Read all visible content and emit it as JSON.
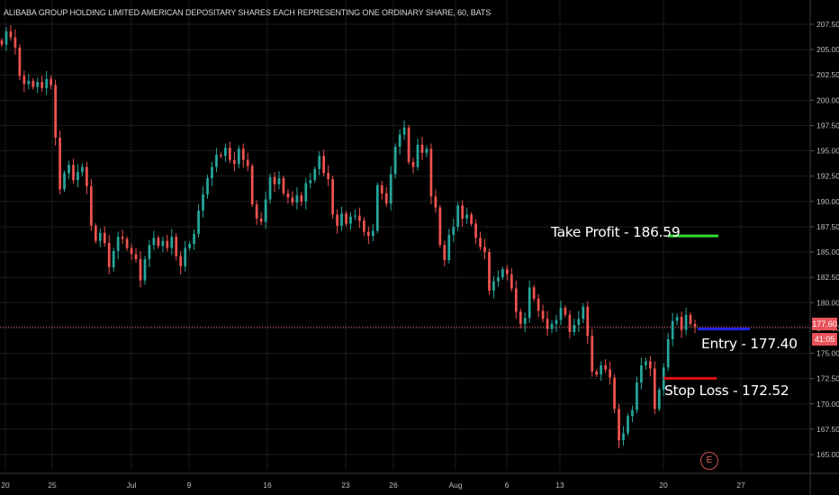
{
  "chart_data": {
    "type": "candlestick",
    "title": "ALIBABA GROUP HOLDING LIMITED AMERICAN DEPOSITARY SHARES EACH REPRESENTING ONE ORDINARY SHARE, 60, BATS",
    "ylim": [
      163.5,
      208.5
    ],
    "y_ticks": [
      "207.50",
      "205.00",
      "202.50",
      "200.00",
      "197.50",
      "195.00",
      "192.50",
      "190.00",
      "187.50",
      "185.00",
      "182.50",
      "180.00",
      "177.50",
      "175.00",
      "172.50",
      "170.00",
      "167.50",
      "165.00"
    ],
    "x_ticks": [
      "20",
      "25",
      "Jul",
      "9",
      "16",
      "23",
      "26",
      "Aug",
      "6",
      "13",
      "20",
      "27"
    ],
    "grid": true,
    "current_price": "177.60",
    "countdown": "41:05",
    "current_price_value": 177.6,
    "up_color": "#26a69a",
    "down_color": "#ef5350",
    "levels": [
      {
        "label": "Take Profit - 186.59",
        "value": 186.59,
        "color": "#33dd33"
      },
      {
        "label": "Entry - 177.40",
        "value": 177.4,
        "color": "#2222ee"
      },
      {
        "label": "Stop Loss - 172.52",
        "value": 172.52,
        "color": "#dd1111"
      }
    ],
    "event_marker": "E",
    "closes": [
      205.5,
      206.8,
      206.2,
      205.2,
      202.4,
      201.6,
      201.9,
      201.3,
      201.8,
      201.2,
      202.1,
      201.5,
      196.3,
      191.2,
      192.8,
      193.6,
      192.1,
      192.9,
      193.4,
      191.5,
      187.6,
      186.1,
      186.9,
      185.9,
      183.5,
      185.1,
      186.5,
      186.3,
      185.4,
      184.8,
      184.3,
      182.2,
      184.3,
      185.7,
      186.4,
      185.6,
      186.1,
      185.4,
      186.5,
      184.6,
      183.6,
      185.4,
      185.8,
      186.8,
      189.1,
      190.7,
      192.3,
      193.4,
      194.6,
      194.5,
      195.3,
      194.1,
      193.7,
      195.2,
      194.1,
      193.5,
      189.7,
      188.3,
      188.0,
      190.2,
      192.4,
      191.7,
      192.3,
      190.8,
      190.4,
      189.9,
      190.6,
      190.0,
      191.8,
      192.1,
      193.2,
      194.5,
      192.8,
      192.2,
      188.7,
      187.6,
      188.8,
      187.8,
      188.5,
      188.6,
      188.1,
      187.0,
      186.6,
      187.1,
      191.6,
      190.8,
      189.8,
      192.7,
      195.4,
      196.6,
      197.3,
      193.9,
      193.4,
      195.6,
      194.8,
      195.2,
      190.5,
      189.4,
      185.7,
      184.2,
      186.7,
      187.5,
      189.6,
      188.3,
      188.7,
      187.8,
      186.4,
      185.5,
      185.0,
      181.2,
      182.1,
      182.5,
      183.3,
      182.8,
      181.4,
      179.1,
      177.9,
      178.5,
      181.5,
      180.4,
      179.2,
      178.4,
      177.4,
      177.9,
      178.3,
      179.5,
      178.8,
      177.1,
      177.8,
      178.4,
      179.6,
      176.7,
      173.2,
      172.9,
      173.8,
      173.4,
      172.6,
      169.5,
      166.4,
      167.1,
      168.8,
      169.4,
      172.1,
      173.8,
      174.2,
      173.5,
      169.5,
      171.4,
      173.6,
      176.4,
      178.2,
      178.6,
      177.3,
      178.8,
      177.9,
      177.6
    ]
  }
}
